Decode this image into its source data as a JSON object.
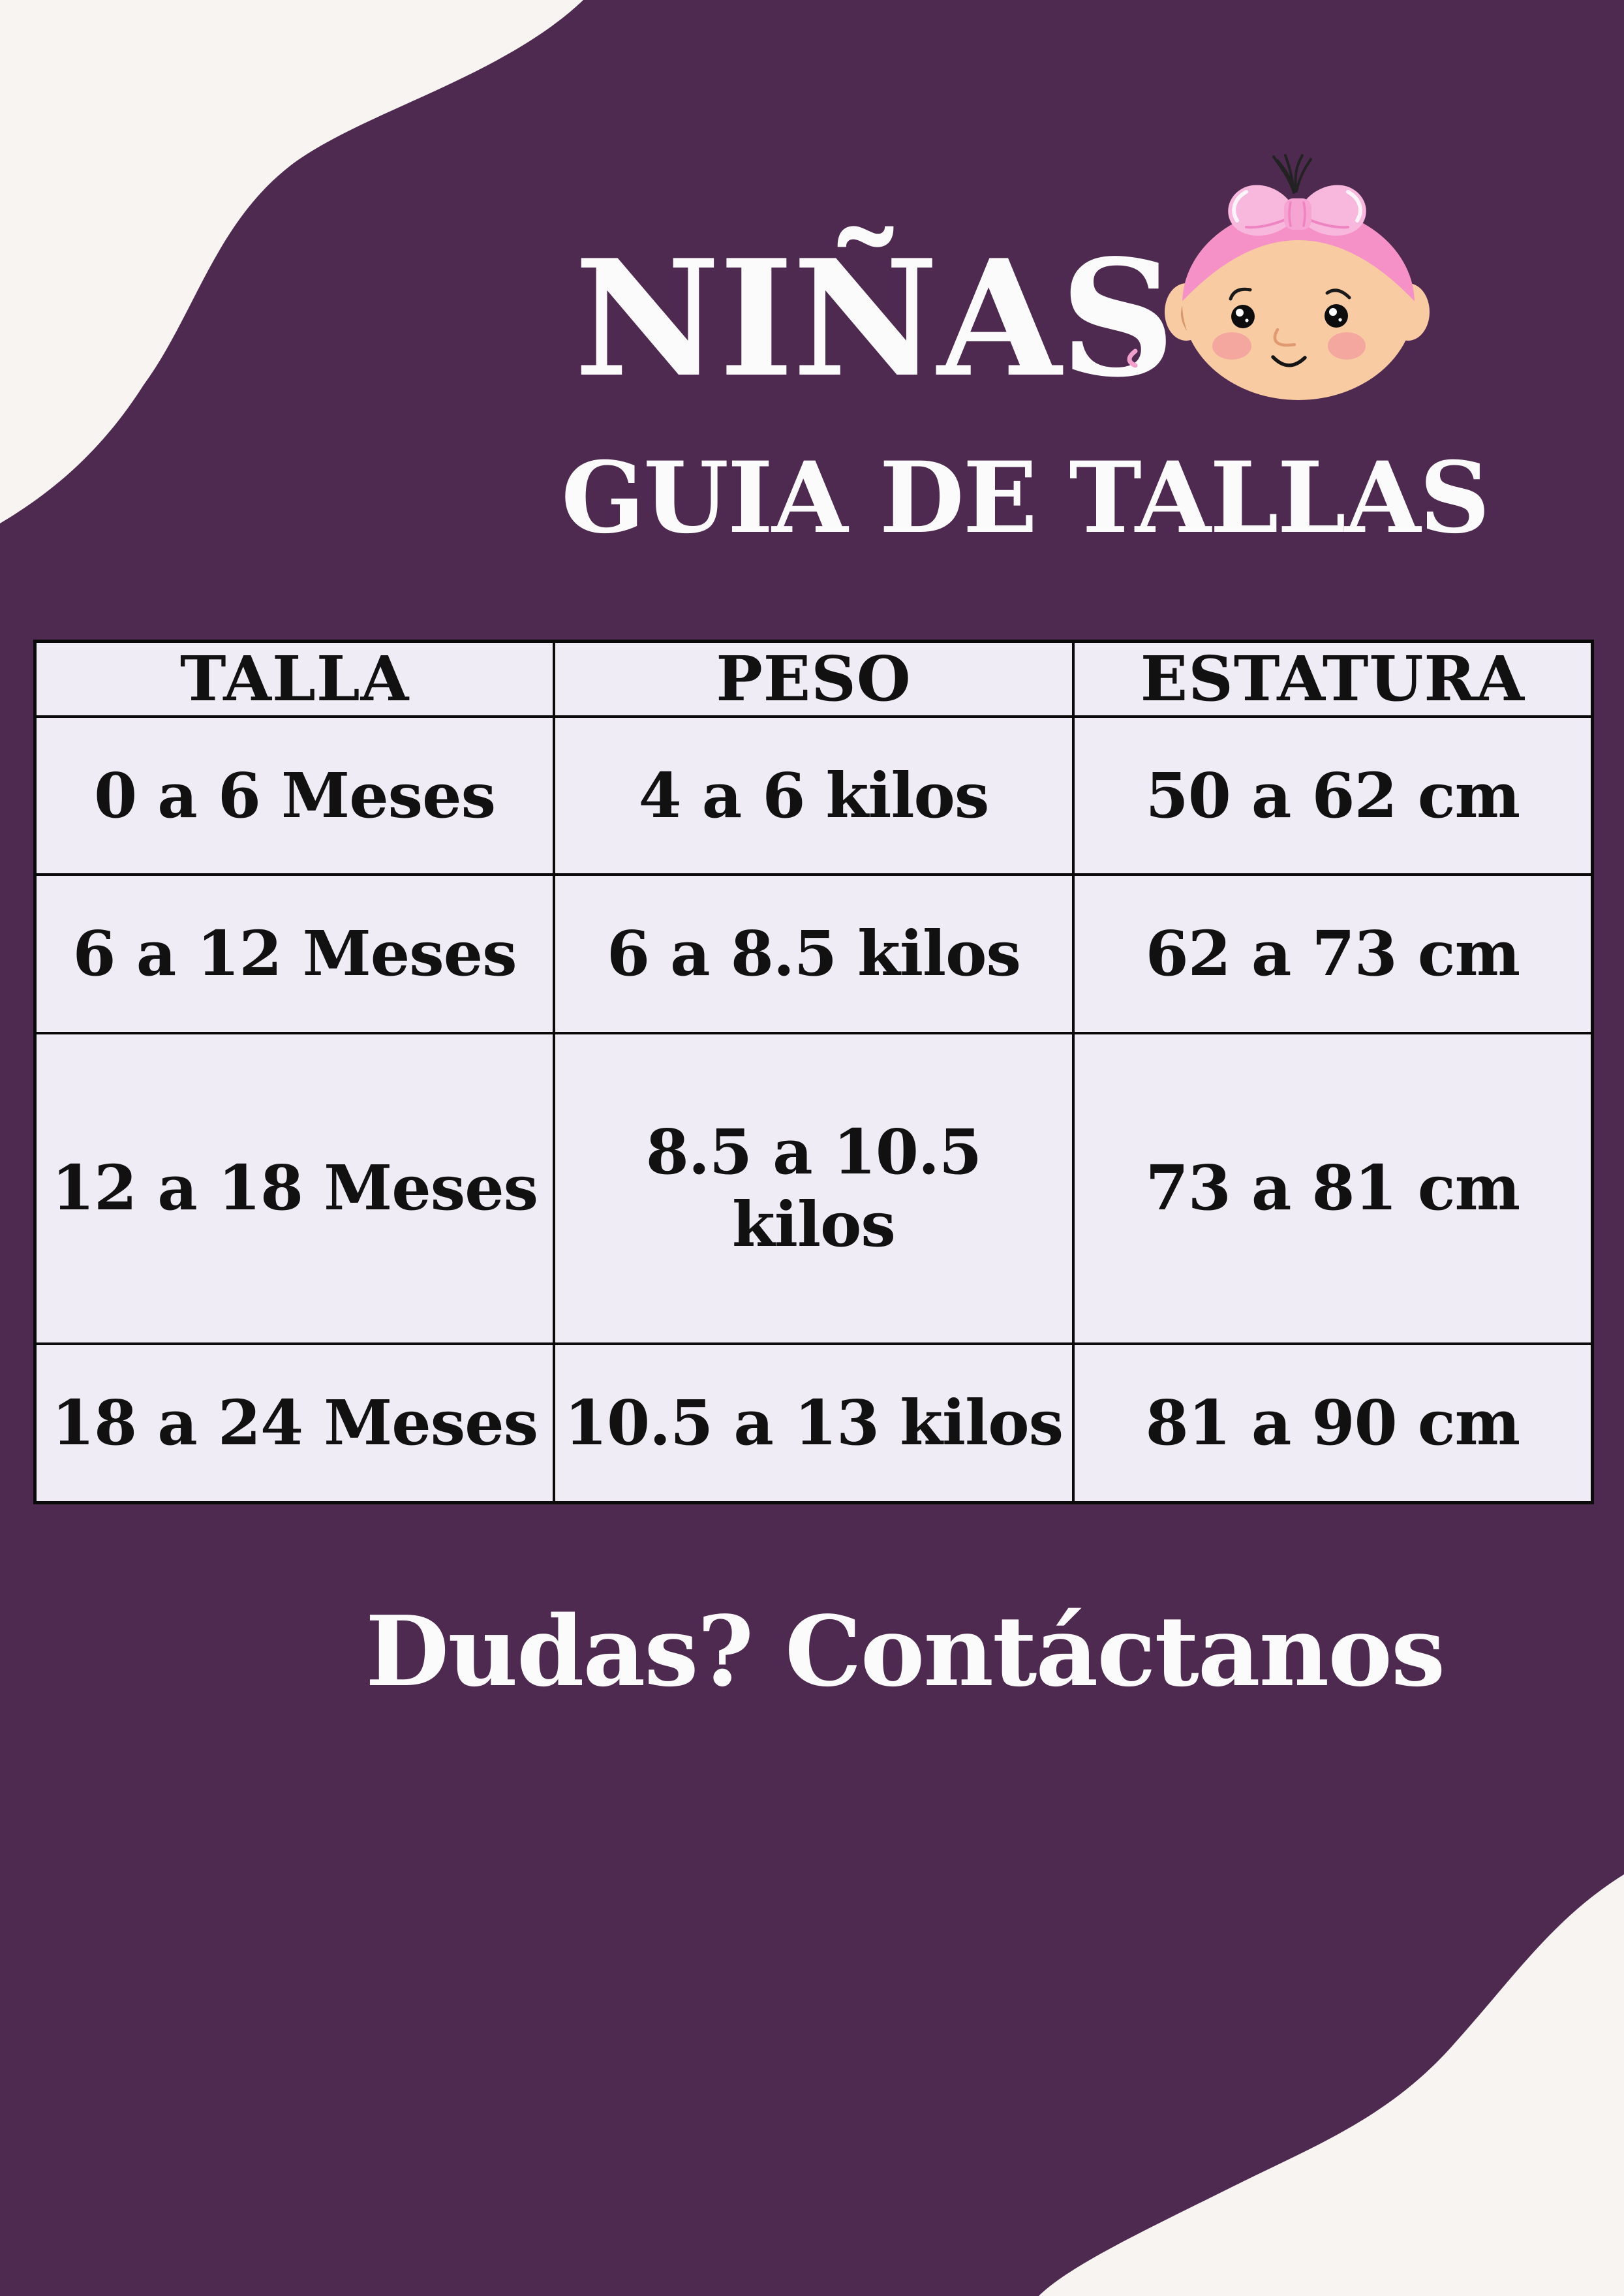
{
  "page": {
    "title": "NIÑAS",
    "subtitle": "GUIA DE TALLAS",
    "footer_text": "Dudas? Contáctanos"
  },
  "size_table": {
    "columns": [
      "TALLA",
      "PESO",
      "ESTATURA"
    ],
    "rows": [
      [
        "0 a 6 Meses",
        "4 a 6 kilos",
        "50 a 62 cm"
      ],
      [
        "6 a 12 Meses",
        "6 a 8.5 kilos",
        "62 a 73 cm"
      ],
      [
        "12 a 18 Meses",
        "8.5 a 10.5 kilos",
        "73 a 81 cm"
      ],
      [
        "18 a 24 Meses",
        "10.5 a 13 kilos",
        "81 a 90 cm"
      ]
    ]
  },
  "icons": {
    "baby_girl": "baby-girl-face-icon"
  },
  "colors": {
    "purple": "#4e2a50",
    "cream": "#f7f4f1",
    "table_bg": "#efecf6",
    "table_border": "#0a0a0a",
    "table_text": "#111111",
    "title_white": "#fcfbfb",
    "skin": "#f9cba3",
    "skin_line": "#d9986b",
    "pink_band": "#f591c6",
    "pink_bow": "#f8b7dc",
    "pink_knot": "#f6a5d2",
    "bow_crease": "#ee84c2",
    "cheek": "#f4a79e",
    "hair": "#222222",
    "mouth": "#151515"
  }
}
